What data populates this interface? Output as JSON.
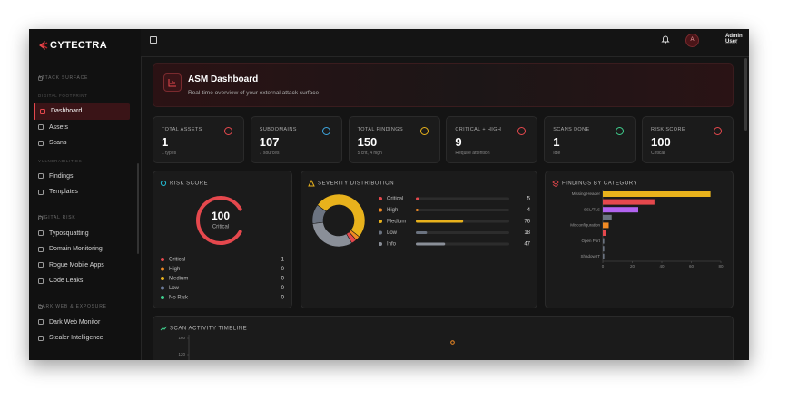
{
  "brand": "CYTECTRA",
  "sidebar": {
    "entries": [
      {
        "kind": "section",
        "label": "ATTACK SURFACE"
      },
      {
        "kind": "group",
        "label": "DIGITAL FOOTPRINT"
      },
      {
        "kind": "item",
        "label": "Dashboard",
        "active": true
      },
      {
        "kind": "item",
        "label": "Assets"
      },
      {
        "kind": "item",
        "label": "Scans"
      },
      {
        "kind": "group",
        "label": "VULNERABILITIES"
      },
      {
        "kind": "item",
        "label": "Findings"
      },
      {
        "kind": "item",
        "label": "Templates"
      },
      {
        "kind": "section",
        "label": "DIGITAL RISK"
      },
      {
        "kind": "item",
        "label": "Typosquatting"
      },
      {
        "kind": "item",
        "label": "Domain Monitoring"
      },
      {
        "kind": "item",
        "label": "Rogue Mobile Apps"
      },
      {
        "kind": "item",
        "label": "Code Leaks"
      },
      {
        "kind": "section",
        "label": "DARK WEB & EXPOSURE"
      },
      {
        "kind": "item",
        "label": "Dark Web Monitor"
      },
      {
        "kind": "item",
        "label": "Stealer Intelligence"
      }
    ]
  },
  "user": {
    "initial": "A",
    "name": "Admin User",
    "role": "Admin"
  },
  "banner": {
    "title": "ASM Dashboard",
    "subtitle": "Real-time overview of your external attack surface"
  },
  "stats": [
    {
      "label": "TOTAL ASSETS",
      "value": 1,
      "note": "1 types",
      "color": "#e5484d"
    },
    {
      "label": "SUBDOMAINS",
      "value": 107,
      "note": "7 sources",
      "color": "#3ea6e0"
    },
    {
      "label": "TOTAL FINDINGS",
      "value": 150,
      "note": "5 crit, 4 high",
      "color": "#e8b21c"
    },
    {
      "label": "CRITICAL + HIGH",
      "value": 9,
      "note": "Require attention",
      "color": "#e5484d"
    },
    {
      "label": "SCANS DONE",
      "value": 1,
      "note": "Idle",
      "color": "#3fcf8e"
    },
    {
      "label": "RISK SCORE",
      "value": 100,
      "note": "Critical",
      "color": "#e5484d"
    }
  ],
  "risk_score": {
    "title": "RISK SCORE",
    "value": 100,
    "label": "Critical",
    "range": [
      0,
      100
    ],
    "color": "#e5484d",
    "legend": [
      {
        "name": "Critical",
        "value": 1,
        "color": "#e5484d"
      },
      {
        "name": "High",
        "value": 0,
        "color": "#f08a24"
      },
      {
        "name": "Medium",
        "value": 0,
        "color": "#e8b21c"
      },
      {
        "name": "Low",
        "value": 0,
        "color": "#6b7a99"
      },
      {
        "name": "No Risk",
        "value": 0,
        "color": "#3fcf8e"
      }
    ]
  },
  "severity": {
    "title": "SEVERITY DISTRIBUTION",
    "type": "donut",
    "series": [
      {
        "name": "Critical",
        "value": 5,
        "color": "#e5484d"
      },
      {
        "name": "High",
        "value": 4,
        "color": "#f08a24"
      },
      {
        "name": "Medium",
        "value": 76,
        "color": "#e8b21c"
      },
      {
        "name": "Low",
        "value": 18,
        "color": "#6b7380"
      },
      {
        "name": "Info",
        "value": 47,
        "color": "#8a8f98"
      }
    ]
  },
  "categories_chart": {
    "title": "FINDINGS BY CATEGORY",
    "type": "bar",
    "orientation": "horizontal",
    "categories": [
      "Missing Header",
      null,
      "SSL/TLS",
      null,
      "Misconfiguration",
      null,
      "Open Port",
      null,
      "Shadow IT"
    ],
    "values": [
      73,
      35,
      24,
      6,
      4,
      2,
      1,
      1,
      1
    ],
    "colors": [
      "#e8b21c",
      "#e5484d",
      "#b264f0",
      "#6b7380",
      "#f08a24",
      "#e5484d",
      "#6b7380",
      "#6b7380",
      "#6b7380"
    ],
    "xlim": [
      0,
      80
    ],
    "xticks": [
      0,
      20,
      40,
      60,
      80
    ]
  },
  "timeline": {
    "title": "SCAN ACTIVITY TIMELINE",
    "ylim": [
      0,
      160
    ],
    "yticks": [
      120,
      160
    ],
    "values": [
      150
    ],
    "color": "#f08a24"
  }
}
